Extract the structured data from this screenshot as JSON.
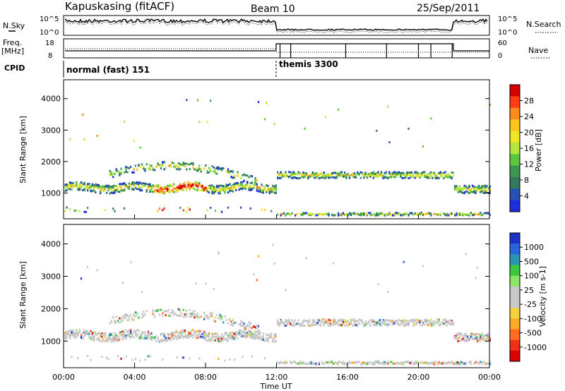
{
  "header": {
    "station": "Kapuskasing (fitACF)",
    "beam": "Beam 10",
    "date": "25/Sep/2011"
  },
  "side_labels": {
    "nsky": "N.Sky",
    "nsearch": "N.Search",
    "freq": "Freq.",
    "mhz": "[MHz]",
    "nave": "Nave",
    "cpid": "CPID"
  },
  "noise_axis": {
    "top": "10^5",
    "bottom": "10^0",
    "right_top": "10^5",
    "right_bottom": "10^0"
  },
  "freq_axis": {
    "top": "18",
    "bottom": "8",
    "right_top": "60",
    "right_bottom": "0"
  },
  "cpid_modes": [
    {
      "label": "normal (fast) 151",
      "start_hour": 0
    },
    {
      "label": "themis 3300",
      "start_hour": 12
    }
  ],
  "chart_data": [
    {
      "type": "heatmap",
      "name": "power-panel",
      "xlabel": "",
      "ylabel": "Slant Range [km]",
      "xlim": [
        0,
        24
      ],
      "ylim": [
        180,
        4600
      ],
      "yticks": [
        1000,
        2000,
        3000,
        4000
      ],
      "colorbar": {
        "label": "Power [dB]",
        "ticks": [
          "28",
          "24",
          "20",
          "16",
          "12",
          "8",
          "4"
        ],
        "colors": [
          "#d40000",
          "#ff3c14",
          "#ff8a1e",
          "#ffc21e",
          "#f0e628",
          "#b4e63c",
          "#5ac83c",
          "#3c9650",
          "#32785a",
          "#2850b4",
          "#1e2ddc"
        ]
      }
    },
    {
      "type": "heatmap",
      "name": "velocity-panel",
      "xlabel": "Time UT",
      "ylabel": "Slant Range [km]",
      "xlim": [
        0,
        24
      ],
      "ylim": [
        180,
        4600
      ],
      "yticks": [
        1000,
        2000,
        3000,
        4000
      ],
      "xticks": [
        "00:00",
        "04:00",
        "08:00",
        "12:00",
        "16:00",
        "20:00",
        "00:00"
      ],
      "colorbar": {
        "label": "Velocity [m s-1]",
        "ticks": [
          "1000",
          "500",
          "100",
          "25",
          "-25",
          "-100",
          "-500",
          "-1000"
        ],
        "colors": [
          "#1e32c8",
          "#2864dc",
          "#2896b4",
          "#3cc83c",
          "#8ce664",
          "#c8c8c8",
          "#c8c8c8",
          "#f5d23c",
          "#ffaa28",
          "#ff6e1e",
          "#f03214",
          "#dc0000"
        ]
      }
    }
  ]
}
